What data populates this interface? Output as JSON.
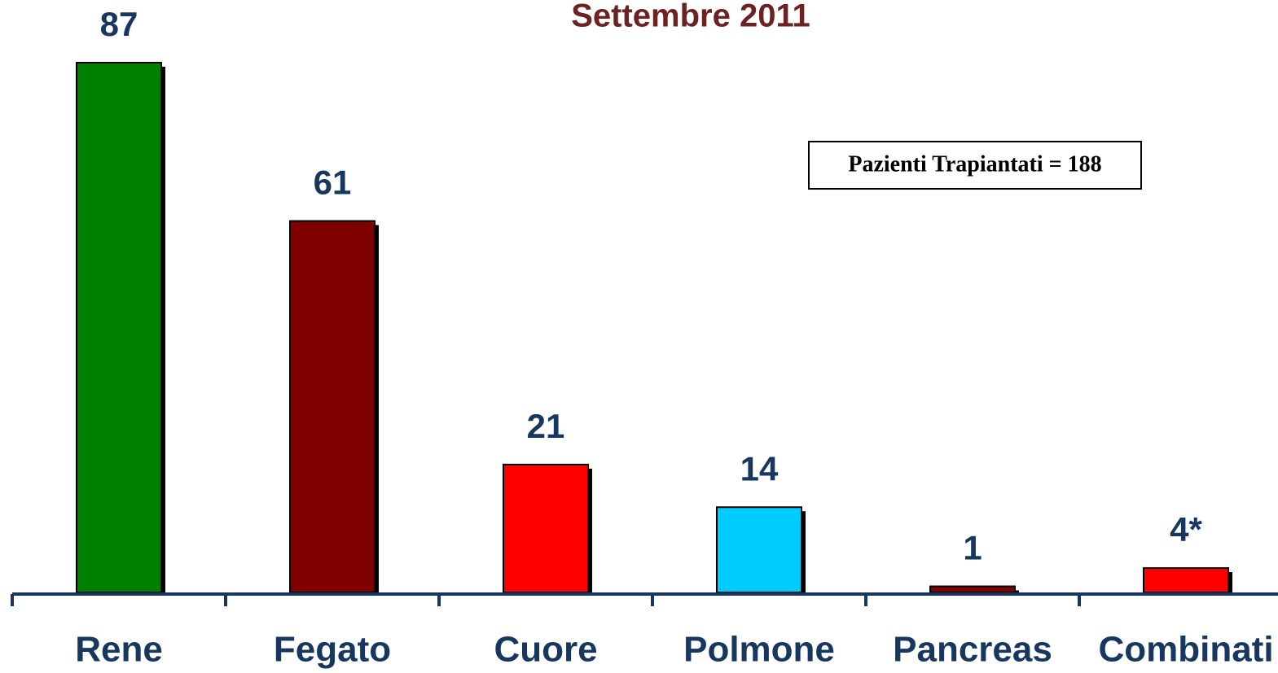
{
  "chart_data": {
    "type": "bar",
    "title": "Settembre 2011",
    "annotation": "Pazienti Trapiantati = 188",
    "categories": [
      "Rene",
      "Fegato",
      "Cuore",
      "Polmone",
      "Pancreas",
      "Combinati"
    ],
    "values": [
      87,
      61,
      21,
      14,
      1,
      4
    ],
    "value_labels": [
      "87",
      "61",
      "21",
      "14",
      "1",
      "4*"
    ],
    "colors": [
      "#008000",
      "#800000",
      "#ff0000",
      "#00ccff",
      "#800000",
      "#ff0000"
    ]
  }
}
